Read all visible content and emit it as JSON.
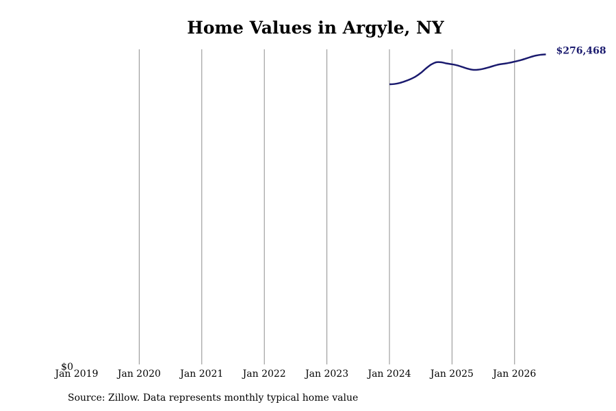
{
  "chart_data": {
    "type": "line",
    "title": "Home Values in Argyle, NY",
    "source": "Source: Zillow. Data represents monthly typical home value",
    "x_ticks": [
      "Jan 2019",
      "Jan 2020",
      "Jan 2021",
      "Jan 2022",
      "Jan 2023",
      "Jan 2024",
      "Jan 2025",
      "Jan 2026"
    ],
    "y_ticks": [
      "$0"
    ],
    "ylim": [
      0,
      280000
    ],
    "xlim": [
      "2019-01",
      "2026-08"
    ],
    "grid": "vertical at year starts",
    "line_color": "#1a1a6e",
    "end_label": "$276,468",
    "series": [
      {
        "x": [
          "2024-01",
          "2024-02",
          "2024-03",
          "2024-04",
          "2024-05",
          "2024-06",
          "2024-07",
          "2024-08",
          "2024-09",
          "2024-10",
          "2024-11",
          "2024-12",
          "2025-01",
          "2025-02",
          "2025-03",
          "2025-04",
          "2025-05",
          "2025-06",
          "2025-07",
          "2025-08",
          "2025-09",
          "2025-10",
          "2025-11",
          "2025-12",
          "2026-01",
          "2026-02",
          "2026-03",
          "2026-04",
          "2026-05",
          "2026-06",
          "2026-07"
        ],
        "values": [
          250000,
          250300,
          251200,
          252700,
          254500,
          256800,
          260000,
          264000,
          267500,
          269500,
          269400,
          268400,
          267700,
          266700,
          265300,
          263800,
          262800,
          262900,
          263700,
          264900,
          266300,
          267500,
          268200,
          269000,
          270000,
          271100,
          272500,
          274000,
          275300,
          276100,
          276468
        ]
      }
    ]
  }
}
